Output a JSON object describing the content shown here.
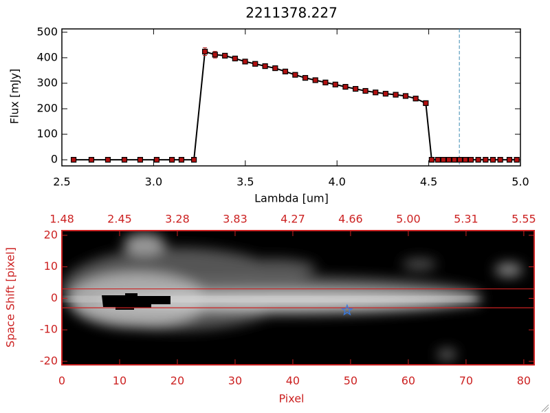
{
  "chart_data": [
    {
      "type": "line",
      "title": "2211378.227",
      "x_label": "Lambda [um]",
      "y_label": "Flux [mJy]",
      "x": [
        2.564,
        2.661,
        2.751,
        2.841,
        2.927,
        3.017,
        3.1,
        3.152,
        3.22,
        3.28,
        3.335,
        3.389,
        3.444,
        3.499,
        3.554,
        3.608,
        3.663,
        3.718,
        3.772,
        3.827,
        3.882,
        3.937,
        3.991,
        4.046,
        4.101,
        4.155,
        4.21,
        4.265,
        4.32,
        4.374,
        4.429,
        4.484,
        4.516,
        4.55,
        4.58,
        4.61,
        4.64,
        4.67,
        4.7,
        4.73,
        4.77,
        4.81,
        4.85,
        4.89,
        4.94,
        4.98
      ],
      "series": [
        {
          "color": "#b01010",
          "values": [
            0,
            0,
            0,
            0,
            0,
            0,
            0,
            0,
            0,
            424,
            412,
            408,
            397,
            385,
            376,
            367,
            359,
            346,
            333,
            321,
            312,
            303,
            295,
            286,
            278,
            270,
            264,
            259,
            255,
            250,
            240,
            222,
            0,
            0,
            0,
            0,
            0,
            0,
            0,
            0,
            0,
            0,
            0,
            0,
            0,
            0
          ],
          "errors": [
            null,
            null,
            null,
            null,
            null,
            null,
            null,
            null,
            null,
            15,
            13,
            null,
            null,
            null,
            null,
            null,
            null,
            null,
            null,
            null,
            null,
            null,
            null,
            null,
            null,
            null,
            null,
            null,
            null,
            null,
            null,
            null,
            null,
            null,
            null,
            null,
            null,
            null,
            null,
            null,
            null,
            null,
            null,
            null,
            null,
            null
          ]
        }
      ],
      "vline": 4.667,
      "xlim": [
        2.5,
        5.0
      ],
      "ylim": [
        -24,
        513
      ],
      "xticks": [
        2.5,
        {
          "value": 3,
          "label": "3.0"
        },
        3.5,
        {
          "value": 4,
          "label": "4.0"
        },
        4.5,
        {
          "value": 5,
          "label": "5.0"
        }
      ],
      "yticks": [
        0,
        100,
        200,
        300,
        400,
        500
      ]
    },
    {
      "type": "image",
      "x_label": "Pixel",
      "y_label": "Space Shift [pixel]",
      "xlim": [
        0,
        81.8
      ],
      "ylim": [
        -21.1,
        21.5
      ],
      "xticks": [
        0,
        10,
        20,
        30,
        40,
        50,
        60,
        70,
        80
      ],
      "x2ticks": [
        {
          "value": 0,
          "label": "1.48"
        },
        {
          "value": 10,
          "label": "2.45"
        },
        {
          "value": 20,
          "label": "3.28"
        },
        {
          "value": 30,
          "label": "3.83"
        },
        {
          "value": 40,
          "label": "4.27"
        },
        {
          "value": 50,
          "label": "4.66"
        },
        {
          "value": 60,
          "label": "5.00"
        },
        {
          "value": 70,
          "label": "5.31"
        },
        {
          "value": 80,
          "label": "5.55"
        }
      ],
      "yticks": [
        -20,
        -10,
        0,
        10,
        20
      ],
      "hlines": [
        3,
        -3
      ],
      "marker": {
        "x": 49.4,
        "y": -3.8,
        "color": "#3a7ae0"
      },
      "color": "#cc2222"
    }
  ]
}
